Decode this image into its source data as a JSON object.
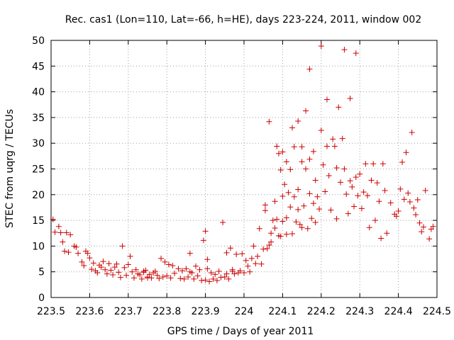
{
  "chart_data": {
    "type": "scatter",
    "title": "Rec. cas1 (Lon=110, Lat=-66, h=HE), days 223-224, 2011, window 002",
    "xlabel": "GPS time / Days of year 2011",
    "ylabel": "STEC from uqrg / TECUs",
    "xlim": [
      223.5,
      224.5
    ],
    "ylim": [
      0,
      50
    ],
    "xticks": [
      223.5,
      223.6,
      223.7,
      223.8,
      223.9,
      224.0,
      224.1,
      224.2,
      224.3,
      224.4,
      224.5
    ],
    "xtick_labels": [
      "223.5",
      "223.6",
      "223.7",
      "223.8",
      "223.9",
      "224",
      "224.1",
      "224.2",
      "224.3",
      "224.4",
      "224.5"
    ],
    "yticks": [
      0,
      5,
      10,
      15,
      20,
      25,
      30,
      35,
      40,
      45,
      50
    ],
    "ytick_labels": [
      "0",
      "5",
      "10",
      "15",
      "20",
      "25",
      "30",
      "35",
      "40",
      "45",
      "50"
    ],
    "grid": true,
    "marker": "+",
    "marker_color": "#cc0000",
    "points": [
      [
        223.505,
        15.2
      ],
      [
        223.51,
        12.7
      ],
      [
        223.52,
        13.8
      ],
      [
        223.525,
        12.6
      ],
      [
        223.53,
        10.8
      ],
      [
        223.535,
        9.0
      ],
      [
        223.54,
        12.6
      ],
      [
        223.545,
        8.8
      ],
      [
        223.55,
        12.2
      ],
      [
        223.56,
        10.0
      ],
      [
        223.565,
        9.8
      ],
      [
        223.57,
        8.6
      ],
      [
        223.58,
        6.9
      ],
      [
        223.585,
        6.2
      ],
      [
        223.59,
        9.0
      ],
      [
        223.595,
        8.6
      ],
      [
        223.6,
        7.7
      ],
      [
        223.605,
        5.5
      ],
      [
        223.61,
        6.7
      ],
      [
        223.615,
        5.2
      ],
      [
        223.62,
        4.8
      ],
      [
        223.625,
        6.3
      ],
      [
        223.63,
        5.9
      ],
      [
        223.635,
        7.0
      ],
      [
        223.64,
        5.4
      ],
      [
        223.645,
        4.6
      ],
      [
        223.65,
        6.6
      ],
      [
        223.655,
        5.3
      ],
      [
        223.66,
        4.4
      ],
      [
        223.665,
        5.9
      ],
      [
        223.67,
        6.5
      ],
      [
        223.675,
        4.9
      ],
      [
        223.68,
        3.9
      ],
      [
        223.685,
        10.0
      ],
      [
        223.69,
        5.8
      ],
      [
        223.695,
        4.3
      ],
      [
        223.7,
        6.4
      ],
      [
        223.705,
        8.0
      ],
      [
        223.71,
        5.0
      ],
      [
        223.715,
        3.8
      ],
      [
        223.72,
        5.4
      ],
      [
        223.725,
        4.6
      ],
      [
        223.73,
        4.4
      ],
      [
        223.735,
        3.6
      ],
      [
        223.74,
        4.9
      ],
      [
        223.745,
        5.3
      ],
      [
        223.75,
        4.0
      ],
      [
        223.755,
        4.5
      ],
      [
        223.76,
        3.8
      ],
      [
        223.765,
        4.8
      ],
      [
        223.77,
        5.1
      ],
      [
        223.775,
        4.3
      ],
      [
        223.78,
        3.7
      ],
      [
        223.785,
        7.6
      ],
      [
        223.79,
        4.0
      ],
      [
        223.795,
        6.9
      ],
      [
        223.8,
        4.2
      ],
      [
        223.805,
        6.4
      ],
      [
        223.81,
        3.8
      ],
      [
        223.815,
        6.2
      ],
      [
        223.82,
        4.7
      ],
      [
        223.83,
        5.6
      ],
      [
        223.835,
        3.7
      ],
      [
        223.84,
        5.2
      ],
      [
        223.845,
        3.6
      ],
      [
        223.85,
        5.6
      ],
      [
        223.855,
        4.0
      ],
      [
        223.86,
        8.6
      ],
      [
        223.865,
        4.8
      ],
      [
        223.87,
        3.6
      ],
      [
        223.875,
        6.1
      ],
      [
        223.88,
        4.2
      ],
      [
        223.885,
        5.4
      ],
      [
        223.89,
        3.3
      ],
      [
        223.895,
        11.1
      ],
      [
        223.9,
        3.4
      ],
      [
        223.905,
        5.6
      ],
      [
        223.91,
        3.1
      ],
      [
        223.915,
        4.8
      ],
      [
        223.92,
        3.6
      ],
      [
        223.925,
        4.5
      ],
      [
        223.93,
        3.3
      ],
      [
        223.935,
        5.1
      ],
      [
        223.94,
        3.9
      ],
      [
        223.945,
        14.6
      ],
      [
        223.95,
        4.0
      ],
      [
        223.955,
        4.6
      ],
      [
        223.96,
        3.6
      ],
      [
        223.965,
        9.6
      ],
      [
        223.97,
        5.1
      ],
      [
        223.975,
        4.6
      ],
      [
        223.98,
        8.4
      ],
      [
        223.985,
        4.8
      ],
      [
        223.99,
        5.2
      ],
      [
        223.995,
        8.5
      ],
      [
        223.9,
        12.9
      ],
      [
        223.905,
        7.4
      ],
      [
        223.955,
        8.7
      ],
      [
        223.97,
        5.4
      ],
      [
        223.86,
        5.0
      ],
      [
        223.74,
        5.1
      ],
      [
        223.75,
        3.8
      ],
      [
        224.0,
        4.8
      ],
      [
        224.005,
        7.2
      ],
      [
        224.01,
        6.1
      ],
      [
        224.015,
        5.0
      ],
      [
        224.02,
        7.6
      ],
      [
        224.025,
        10.0
      ],
      [
        224.03,
        6.6
      ],
      [
        224.035,
        8.0
      ],
      [
        224.04,
        13.4
      ],
      [
        224.045,
        6.5
      ],
      [
        224.05,
        9.4
      ],
      [
        224.055,
        18.0
      ],
      [
        224.055,
        16.9
      ],
      [
        224.06,
        9.5
      ],
      [
        224.065,
        10.2
      ],
      [
        224.065,
        34.2
      ],
      [
        224.07,
        10.8
      ],
      [
        224.07,
        12.5
      ],
      [
        224.075,
        15.0
      ],
      [
        224.08,
        13.5
      ],
      [
        224.08,
        18.7
      ],
      [
        224.085,
        15.2
      ],
      [
        224.085,
        29.4
      ],
      [
        224.09,
        28.0
      ],
      [
        224.09,
        12.0
      ],
      [
        224.095,
        11.9
      ],
      [
        224.095,
        24.8
      ],
      [
        224.1,
        14.8
      ],
      [
        224.1,
        19.7
      ],
      [
        224.1,
        28.3
      ],
      [
        224.105,
        22.0
      ],
      [
        224.11,
        12.3
      ],
      [
        224.11,
        26.4
      ],
      [
        224.11,
        15.5
      ],
      [
        224.115,
        20.4
      ],
      [
        224.12,
        24.9
      ],
      [
        224.12,
        17.6
      ],
      [
        224.125,
        33.0
      ],
      [
        224.125,
        12.4
      ],
      [
        224.13,
        29.3
      ],
      [
        224.13,
        19.6
      ],
      [
        224.135,
        14.7
      ],
      [
        224.14,
        34.3
      ],
      [
        224.14,
        21.0
      ],
      [
        224.14,
        17.1
      ],
      [
        224.145,
        14.2
      ],
      [
        224.15,
        29.3
      ],
      [
        224.15,
        26.4
      ],
      [
        224.15,
        13.6
      ],
      [
        224.155,
        17.8
      ],
      [
        224.16,
        36.3
      ],
      [
        224.16,
        25.0
      ],
      [
        224.165,
        13.4
      ],
      [
        224.17,
        44.4
      ],
      [
        224.17,
        26.9
      ],
      [
        224.17,
        20.2
      ],
      [
        224.175,
        15.4
      ],
      [
        224.18,
        28.4
      ],
      [
        224.18,
        18.3
      ],
      [
        224.185,
        22.8
      ],
      [
        224.185,
        14.6
      ],
      [
        224.19,
        19.6
      ],
      [
        224.195,
        17.2
      ],
      [
        224.2,
        48.9
      ],
      [
        224.2,
        32.5
      ],
      [
        224.205,
        25.8
      ],
      [
        224.21,
        20.6
      ],
      [
        224.215,
        38.5
      ],
      [
        224.215,
        29.4
      ],
      [
        224.22,
        23.7
      ],
      [
        224.225,
        17.0
      ],
      [
        224.23,
        30.8
      ],
      [
        224.235,
        29.4
      ],
      [
        224.24,
        25.2
      ],
      [
        224.24,
        15.3
      ],
      [
        224.245,
        37.0
      ],
      [
        224.25,
        22.4
      ],
      [
        224.255,
        30.9
      ],
      [
        224.26,
        48.2
      ],
      [
        224.26,
        25.0
      ],
      [
        224.265,
        20.1
      ],
      [
        224.27,
        16.3
      ],
      [
        224.275,
        38.7
      ],
      [
        224.275,
        22.7
      ],
      [
        224.28,
        21.5
      ],
      [
        224.285,
        17.7
      ],
      [
        224.29,
        47.5
      ],
      [
        224.29,
        23.4
      ],
      [
        224.295,
        19.8
      ],
      [
        224.3,
        24.0
      ],
      [
        224.305,
        17.3
      ],
      [
        224.31,
        20.5
      ],
      [
        224.315,
        26.0
      ],
      [
        224.32,
        19.8
      ],
      [
        224.325,
        13.6
      ],
      [
        224.33,
        22.8
      ],
      [
        224.335,
        26.0
      ],
      [
        224.34,
        15.0
      ],
      [
        224.345,
        22.3
      ],
      [
        224.35,
        18.7
      ],
      [
        224.355,
        11.5
      ],
      [
        224.36,
        26.0
      ],
      [
        224.365,
        20.8
      ],
      [
        224.37,
        12.5
      ],
      [
        224.38,
        18.4
      ],
      [
        224.39,
        16.2
      ],
      [
        224.395,
        15.8
      ],
      [
        224.4,
        16.8
      ],
      [
        224.405,
        21.1
      ],
      [
        224.41,
        26.3
      ],
      [
        224.415,
        19.1
      ],
      [
        224.42,
        28.2
      ],
      [
        224.425,
        20.3
      ],
      [
        224.43,
        18.6
      ],
      [
        224.435,
        32.1
      ],
      [
        224.44,
        17.4
      ],
      [
        224.445,
        16.1
      ],
      [
        224.45,
        19.0
      ],
      [
        224.455,
        14.5
      ],
      [
        224.46,
        12.8
      ],
      [
        224.465,
        13.7
      ],
      [
        224.47,
        20.8
      ],
      [
        224.48,
        11.4
      ],
      [
        224.485,
        13.3
      ],
      [
        224.49,
        13.8
      ]
    ]
  }
}
